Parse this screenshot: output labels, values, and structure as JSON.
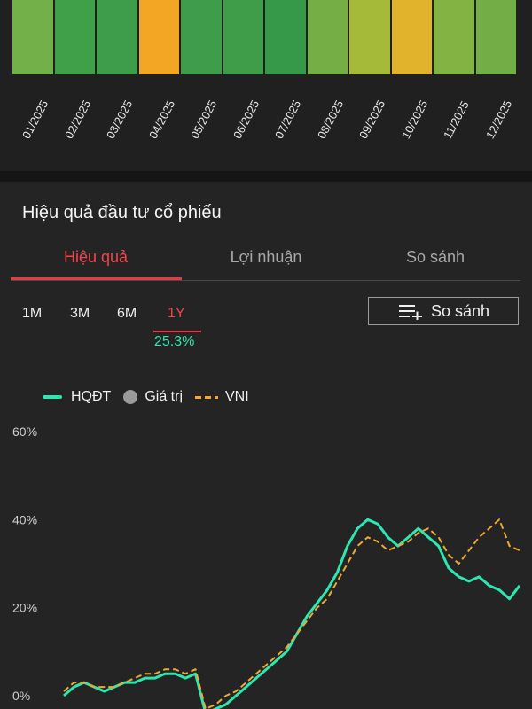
{
  "heatmap": {
    "months": [
      "01/2025",
      "02/2025",
      "03/2025",
      "04/2025",
      "05/2025",
      "06/2025",
      "07/2025",
      "08/2025",
      "09/2025",
      "10/2025",
      "11/2025",
      "12/2025"
    ],
    "colors": [
      "#74b04a",
      "#40a04a",
      "#3e9d4a",
      "#f3a624",
      "#3e9c4a",
      "#3f9d4a",
      "#36994a",
      "#74ae44",
      "#a5ba38",
      "#e1b32c",
      "#82b343",
      "#72ad46"
    ]
  },
  "section": {
    "title": "Hiệu quả đầu tư cổ phiếu",
    "tabs": [
      "Hiệu quả",
      "Lợi nhuận",
      "So sánh"
    ],
    "active_tab": "Hiệu quả"
  },
  "periods": {
    "options": [
      "1M",
      "3M",
      "6M",
      "1Y"
    ],
    "active": "1Y",
    "active_return": "25.3%"
  },
  "compare_button": {
    "label": "So sánh",
    "icon": "list-add-icon"
  },
  "legend": {
    "items": [
      {
        "label": "HQĐT",
        "marker": "line",
        "color": "#2ee6b0"
      },
      {
        "label": "Giá trị",
        "marker": "dot",
        "color": "#9a9a9a"
      },
      {
        "label": "VNI",
        "marker": "dash",
        "color": "#f0a830"
      }
    ]
  },
  "chart_data": {
    "type": "line",
    "y_ticks": [
      "60%",
      "40%",
      "20%",
      "0%"
    ],
    "ylim": [
      0,
      60
    ],
    "series": [
      {
        "name": "HQĐT",
        "color": "#2ee6b0",
        "values": [
          0,
          2,
          3,
          2,
          1,
          2,
          3,
          3,
          4,
          4,
          5,
          5,
          4,
          5,
          -4,
          -3,
          -2,
          0,
          2,
          4,
          6,
          8,
          10,
          14,
          18,
          21,
          24,
          28,
          34,
          38,
          40,
          39,
          36,
          34,
          36,
          38,
          36,
          34,
          29,
          27,
          26,
          27,
          25,
          24,
          22,
          25
        ]
      },
      {
        "name": "VNI",
        "color": "#f0a830",
        "values": [
          1,
          3,
          3,
          2,
          2,
          2,
          3,
          4,
          5,
          5,
          6,
          6,
          5,
          6,
          -3,
          -2,
          0,
          1,
          3,
          5,
          7,
          9,
          11,
          14,
          17,
          20,
          22,
          26,
          30,
          34,
          36,
          35,
          33,
          34,
          35,
          37,
          38,
          36,
          32,
          30,
          33,
          36,
          38,
          40,
          34,
          33
        ]
      }
    ]
  }
}
